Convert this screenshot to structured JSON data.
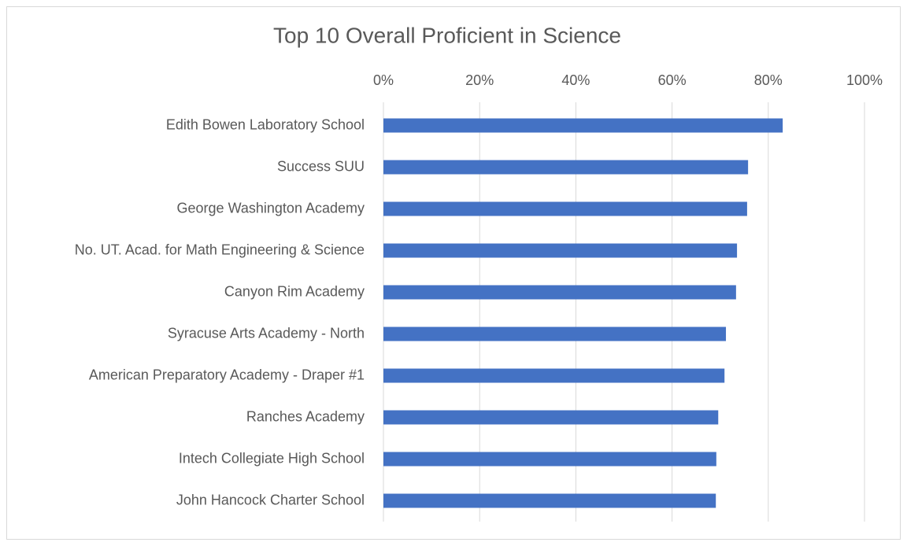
{
  "chart_data": {
    "type": "bar",
    "orientation": "horizontal",
    "title": "Top 10 Overall Proficient in Science",
    "categories": [
      "Edith Bowen Laboratory School",
      "Success SUU",
      "George Washington Academy",
      "No. UT. Acad. for Math Engineering & Science",
      "Canyon Rim Academy",
      "Syracuse Arts Academy - North",
      "American Preparatory Academy - Draper #1",
      "Ranches Academy",
      "Intech Collegiate High School",
      "John Hancock Charter School"
    ],
    "values": [
      83.0,
      75.8,
      75.6,
      73.5,
      73.3,
      71.2,
      70.9,
      69.6,
      69.2,
      69.1
    ],
    "color": "#4472c4",
    "xlim": [
      0,
      100
    ],
    "xticks": [
      {
        "value": 0,
        "label": "0%"
      },
      {
        "value": 20,
        "label": "20%"
      },
      {
        "value": 40,
        "label": "40%"
      },
      {
        "value": 60,
        "label": "60%"
      },
      {
        "value": 80,
        "label": "80%"
      },
      {
        "value": 100,
        "label": "100%"
      }
    ],
    "grid": true
  }
}
